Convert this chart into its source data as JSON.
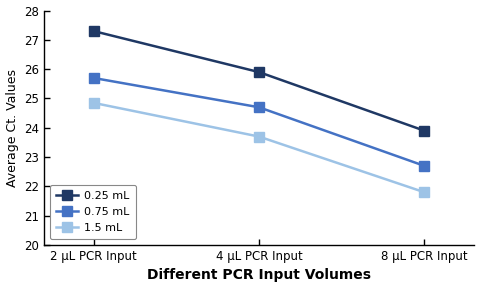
{
  "series": [
    {
      "label": "0.25 mL",
      "values": [
        27.3,
        25.9,
        23.9
      ],
      "color": "#1f3864",
      "marker": "s",
      "linewidth": 1.8,
      "markersize": 7
    },
    {
      "label": "0.75 mL",
      "values": [
        25.7,
        24.7,
        22.7
      ],
      "color": "#4472c4",
      "marker": "s",
      "linewidth": 1.8,
      "markersize": 7
    },
    {
      "label": "1.5 mL",
      "values": [
        24.85,
        23.7,
        21.8
      ],
      "color": "#9dc3e6",
      "marker": "s",
      "linewidth": 1.8,
      "markersize": 7
    }
  ],
  "x_labels": [
    "2 μL PCR Input",
    "4 μL PCR Input",
    "8 μL PCR Input"
  ],
  "x_positions": [
    0,
    1,
    2
  ],
  "ylabel": "Average Ct. Values",
  "xlabel": "Different PCR Input Volumes",
  "ylim": [
    20,
    28
  ],
  "yticks": [
    20,
    21,
    22,
    23,
    24,
    25,
    26,
    27,
    28
  ],
  "background_color": "#ffffff",
  "legend_loc": "lower left",
  "xlabel_fontsize": 10,
  "ylabel_fontsize": 9,
  "xlabel_fontweight": "bold",
  "tick_fontsize": 8.5,
  "legend_fontsize": 8,
  "spine_color": "#000000"
}
